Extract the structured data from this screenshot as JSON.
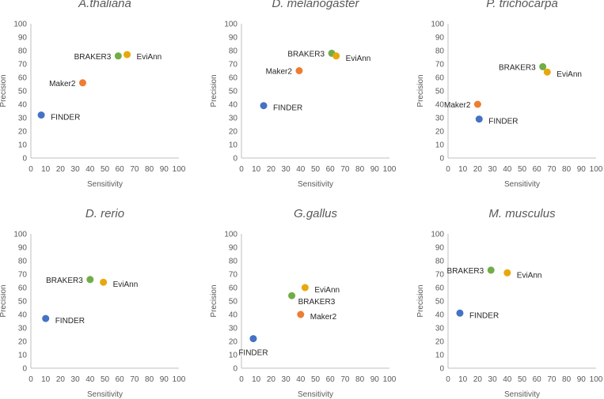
{
  "colors": {
    "FINDER": "#4472c4",
    "Maker2": "#ed7d31",
    "BRAKER3": "#70ad47",
    "EviAnn": "#e8a80c"
  },
  "chart_data": [
    {
      "type": "scatter",
      "title": "A.thaliana",
      "xlabel": "Sensitivity",
      "ylabel": "Precision",
      "xlim": [
        0,
        100
      ],
      "ylim": [
        0,
        100
      ],
      "ticks": [
        "0",
        "10",
        "20",
        "30",
        "40",
        "50",
        "60",
        "70",
        "80",
        "90",
        "100"
      ],
      "points": [
        {
          "name": "FINDER",
          "x": 7,
          "y": 32,
          "label_side": "right"
        },
        {
          "name": "Maker2",
          "x": 35,
          "y": 56,
          "label_side": "left"
        },
        {
          "name": "BRAKER3",
          "x": 59,
          "y": 76,
          "label_side": "left"
        },
        {
          "name": "EviAnn",
          "x": 65,
          "y": 77,
          "label_side": "right"
        }
      ]
    },
    {
      "type": "scatter",
      "title": "D. melanogaster",
      "xlabel": "Sensitivity",
      "ylabel": "Precision",
      "xlim": [
        0,
        100
      ],
      "ylim": [
        0,
        100
      ],
      "ticks": [
        "0",
        "10",
        "20",
        "30",
        "40",
        "50",
        "60",
        "70",
        "80",
        "90",
        "100"
      ],
      "points": [
        {
          "name": "FINDER",
          "x": 15,
          "y": 39,
          "label_side": "right"
        },
        {
          "name": "Maker2",
          "x": 39,
          "y": 65,
          "label_side": "left"
        },
        {
          "name": "BRAKER3",
          "x": 61,
          "y": 78,
          "label_side": "left"
        },
        {
          "name": "EviAnn",
          "x": 64,
          "y": 76,
          "label_side": "right"
        }
      ]
    },
    {
      "type": "scatter",
      "title": "P. trichocarpa",
      "xlabel": "Sensitivity",
      "ylabel": "Precision",
      "xlim": [
        0,
        100
      ],
      "ylim": [
        0,
        100
      ],
      "ticks": [
        "0",
        "10",
        "20",
        "30",
        "40",
        "50",
        "60",
        "70",
        "80",
        "90",
        "100"
      ],
      "points": [
        {
          "name": "FINDER",
          "x": 21,
          "y": 29,
          "label_side": "right"
        },
        {
          "name": "Maker2",
          "x": 20,
          "y": 40,
          "label_side": "left"
        },
        {
          "name": "BRAKER3",
          "x": 64,
          "y": 68,
          "label_side": "left"
        },
        {
          "name": "EviAnn",
          "x": 67,
          "y": 64,
          "label_side": "right"
        }
      ]
    },
    {
      "type": "scatter",
      "title": "D. rerio",
      "xlabel": "Sensitivity",
      "ylabel": "Precision",
      "xlim": [
        0,
        100
      ],
      "ylim": [
        0,
        100
      ],
      "ticks": [
        "0",
        "10",
        "20",
        "30",
        "40",
        "50",
        "60",
        "70",
        "80",
        "90",
        "100"
      ],
      "points": [
        {
          "name": "FINDER",
          "x": 10,
          "y": 37,
          "label_side": "right"
        },
        {
          "name": "BRAKER3",
          "x": 40,
          "y": 66,
          "label_side": "left"
        },
        {
          "name": "EviAnn",
          "x": 49,
          "y": 64,
          "label_side": "right"
        }
      ]
    },
    {
      "type": "scatter",
      "title": "G.gallus",
      "xlabel": "Sensitivity",
      "ylabel": "Precision",
      "xlim": [
        0,
        100
      ],
      "ylim": [
        0,
        100
      ],
      "ticks": [
        "0",
        "10",
        "20",
        "30",
        "40",
        "50",
        "60",
        "70",
        "80",
        "90",
        "100"
      ],
      "points": [
        {
          "name": "FINDER",
          "x": 8,
          "y": 22,
          "label_side": "below"
        },
        {
          "name": "Maker2",
          "x": 40,
          "y": 40,
          "label_side": "right"
        },
        {
          "name": "BRAKER3",
          "x": 34,
          "y": 54,
          "label_side": "below-right"
        },
        {
          "name": "EviAnn",
          "x": 43,
          "y": 60,
          "label_side": "right"
        }
      ]
    },
    {
      "type": "scatter",
      "title": "M. musculus",
      "xlabel": "Sensitivity",
      "ylabel": "Precision",
      "xlim": [
        0,
        100
      ],
      "ylim": [
        0,
        100
      ],
      "ticks": [
        "0",
        "10",
        "20",
        "30",
        "40",
        "50",
        "60",
        "70",
        "80",
        "90",
        "100"
      ],
      "points": [
        {
          "name": "FINDER",
          "x": 8,
          "y": 41,
          "label_side": "right"
        },
        {
          "name": "BRAKER3",
          "x": 29,
          "y": 73,
          "label_side": "left"
        },
        {
          "name": "EviAnn",
          "x": 40,
          "y": 71,
          "label_side": "right"
        }
      ]
    }
  ]
}
